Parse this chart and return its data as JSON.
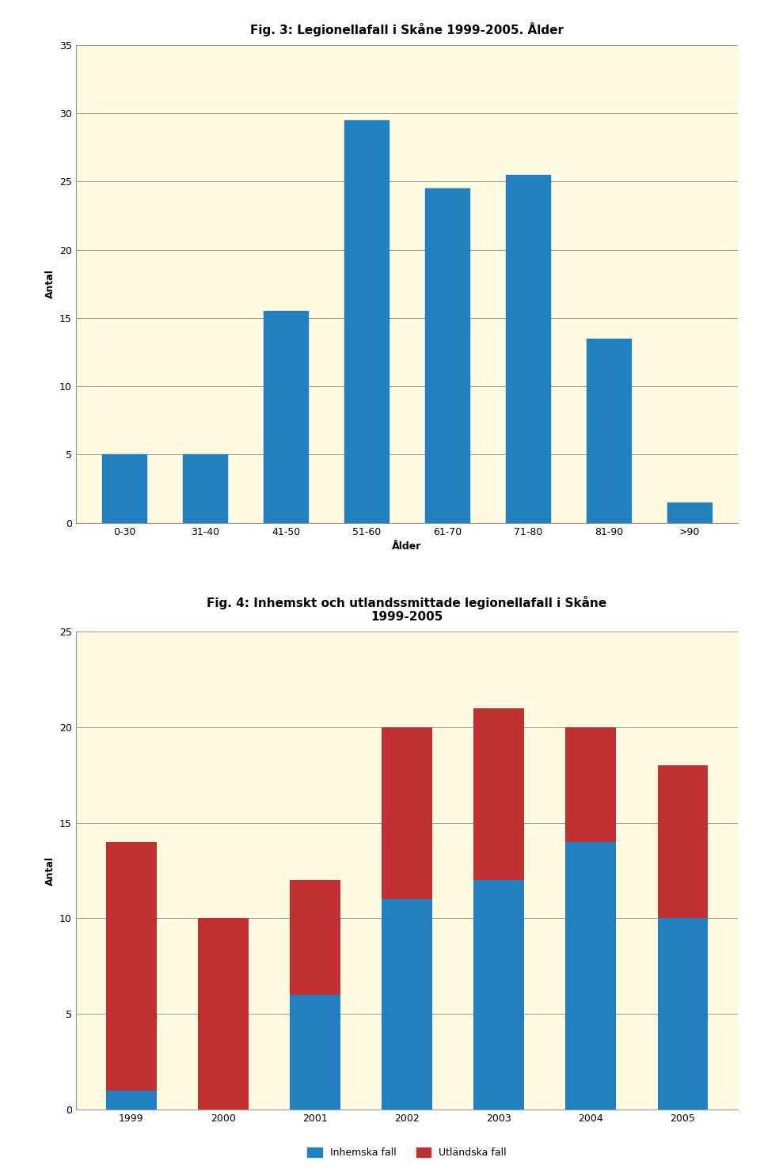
{
  "fig3_title": "Fig. 3: Legionellafall i Skåne 1999-2005. Ålder",
  "fig3_categories": [
    "0-30",
    "31-40",
    "41-50",
    "51-60",
    "61-70",
    "71-80",
    "81-90",
    ">90"
  ],
  "fig3_values": [
    5,
    5,
    15.5,
    29.5,
    24.5,
    25.5,
    13.5,
    1.5
  ],
  "fig3_bar_color": "#2080C0",
  "fig3_xlabel": "Ålder",
  "fig3_ylabel": "Antal",
  "fig3_ylim": [
    0,
    35
  ],
  "fig3_yticks": [
    0,
    5,
    10,
    15,
    20,
    25,
    30,
    35
  ],
  "fig4_title": "Fig. 4: Inhemskt och utlandssmittade legionellafall i Skåne\n1999-2005",
  "fig4_years": [
    "1999",
    "2000",
    "2001",
    "2002",
    "2003",
    "2004",
    "2005"
  ],
  "fig4_domestic": [
    1,
    0,
    6,
    11,
    12,
    14,
    10
  ],
  "fig4_foreign": [
    13,
    10,
    6,
    9,
    9,
    6,
    8
  ],
  "fig4_domestic_color": "#2080C0",
  "fig4_foreign_color": "#C03030",
  "fig4_ylabel": "Antal",
  "fig4_ylim": [
    0,
    25
  ],
  "fig4_yticks": [
    0,
    5,
    10,
    15,
    20,
    25
  ],
  "fig4_legend_domestic": "Inhemska fall",
  "fig4_legend_foreign": "Utländska fall",
  "bg_color": "#FFFAE0",
  "title_fontsize": 11,
  "axis_fontsize": 9,
  "tick_fontsize": 9
}
